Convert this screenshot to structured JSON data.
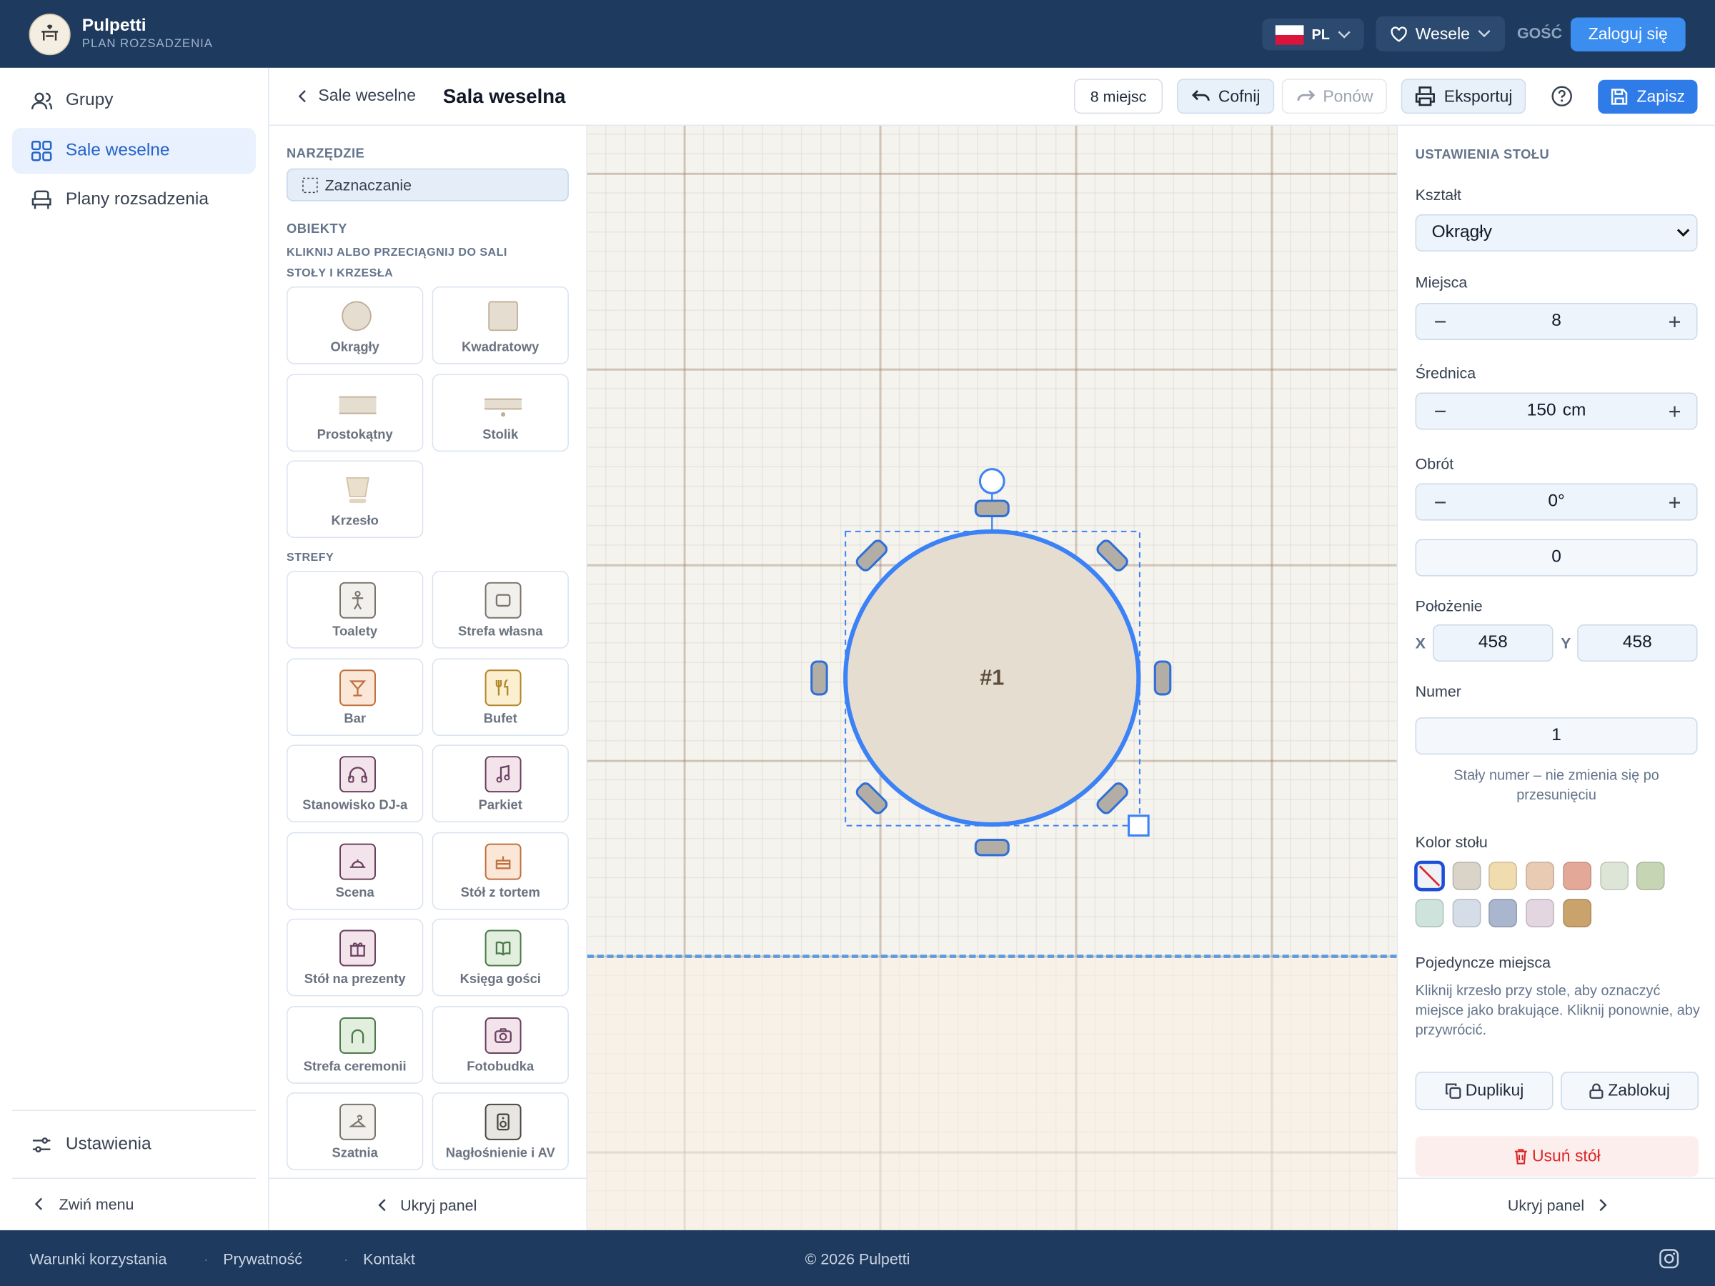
{
  "header": {
    "brand": "Pulpetti",
    "subtitle": "PLAN ROZSADZENIA",
    "language": "PL",
    "event": "Wesele",
    "guest": "GOŚĆ",
    "login": "Zaloguj się"
  },
  "sidebar": {
    "nav": [
      "Grupy",
      "Sale weselne",
      "Plany rozsadzenia"
    ],
    "settings": "Ustawienia",
    "collapse": "Zwiń menu"
  },
  "toolbar": {
    "back": "Sale weselne",
    "title": "Sala weselna",
    "seats": "8 miejsc",
    "undo": "Cofnij",
    "redo": "Ponów",
    "export": "Eksportuj",
    "save": "Zapisz"
  },
  "palette": {
    "tool_heading": "NARZĘDZIE",
    "tool": "Zaznaczanie",
    "objects_heading": "OBIEKTY",
    "hint": "KLIKNIJ ALBO PRZECIĄGNIJ DO SALI",
    "tables_heading": "STOŁY I KRZESŁA",
    "tables": [
      "Okrągły",
      "Kwadratowy",
      "Prostokątny",
      "Stolik",
      "Krzesło"
    ],
    "zones_heading": "STREFY",
    "zones": [
      "Toalety",
      "Strefa własna",
      "Bar",
      "Bufet",
      "Stanowisko DJ-a",
      "Parkiet",
      "Scena",
      "Stół z tortem",
      "Stół na prezenty",
      "Księga gości",
      "Strefa ceremonii",
      "Fotobudka",
      "Szatnia",
      "Nagłośnienie i AV"
    ],
    "hide": "Ukryj panel"
  },
  "canvas": {
    "table_label": "#1"
  },
  "settings": {
    "heading": "USTAWIENIA STOŁU",
    "shape_label": "Kształt",
    "shape": "Okrągły",
    "seats_label": "Miejsca",
    "seats": "8",
    "diameter_label": "Średnica",
    "diameter": "150",
    "diameter_unit": "cm",
    "rotation_label": "Obrót",
    "rotation": "0°",
    "rotation_input": "0",
    "position_label": "Położenie",
    "x_label": "X",
    "x": "458",
    "y_label": "Y",
    "y": "458",
    "number_label": "Numer",
    "number": "1",
    "number_note": "Stały numer – nie zmienia się po przesunięciu",
    "color_label": "Kolor stołu",
    "table_colors": [
      "none",
      "#d9d3c8",
      "#f0dcae",
      "#e9cbb4",
      "#e3a898",
      "#dde6d6",
      "#c6d6b4",
      "#cde3dc",
      "#d5dee8",
      "#a9b6cd",
      "#e3d6e0",
      "#c9a36b"
    ],
    "single_label": "Pojedyncze miejsca",
    "single_note": "Kliknij krzesło przy stole, aby oznaczyć miejsce jako brakujące. Kliknij ponownie, aby przywrócić.",
    "duplicate": "Duplikuj",
    "lock": "Zablokuj",
    "delete": "Usuń stół",
    "hide": "Ukryj panel"
  },
  "footer": {
    "links": [
      "Warunki korzystania",
      "Prywatność",
      "Kontakt"
    ],
    "copyright": "© 2026 Pulpetti"
  }
}
